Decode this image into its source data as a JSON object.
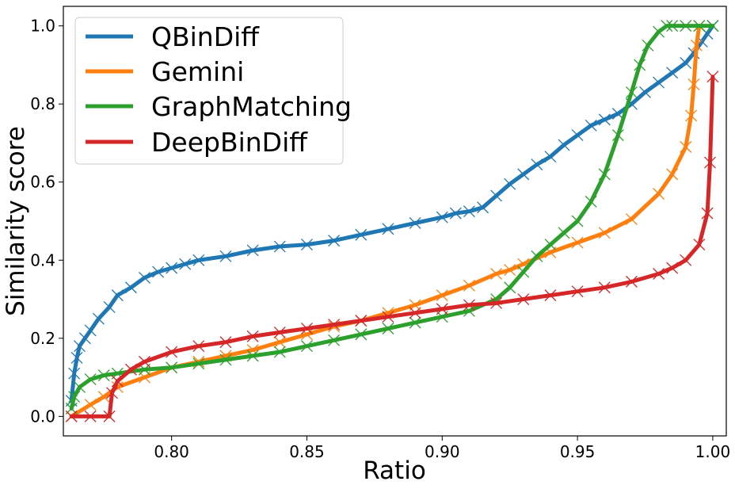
{
  "chart_data": {
    "type": "line",
    "title": "",
    "xlabel": "Ratio",
    "ylabel": "Similarity score",
    "xlim": [
      0.76,
      1.005
    ],
    "ylim": [
      -0.05,
      1.05
    ],
    "xticks": [
      0.8,
      0.85,
      0.9,
      0.95,
      1.0
    ],
    "xtick_labels": [
      "0.80",
      "0.85",
      "0.90",
      "0.95",
      "1.00"
    ],
    "yticks": [
      0.0,
      0.2,
      0.4,
      0.6,
      0.8,
      1.0
    ],
    "ytick_labels": [
      "0.0",
      "0.2",
      "0.4",
      "0.6",
      "0.8",
      "1.0"
    ],
    "grid": false,
    "legend_position": "top-left",
    "marker": "x",
    "series": [
      {
        "name": "QBinDiff",
        "color": "#1f77b4",
        "x": [
          0.763,
          0.764,
          0.765,
          0.766,
          0.768,
          0.77,
          0.773,
          0.777,
          0.78,
          0.785,
          0.79,
          0.795,
          0.8,
          0.805,
          0.81,
          0.82,
          0.83,
          0.84,
          0.85,
          0.86,
          0.87,
          0.88,
          0.89,
          0.9,
          0.905,
          0.91,
          0.915,
          0.92,
          0.925,
          0.93,
          0.935,
          0.94,
          0.945,
          0.95,
          0.955,
          0.96,
          0.965,
          0.97,
          0.975,
          0.98,
          0.985,
          0.99,
          0.993,
          0.996,
          0.998,
          1.0
        ],
        "y": [
          0.04,
          0.11,
          0.15,
          0.18,
          0.2,
          0.22,
          0.25,
          0.28,
          0.31,
          0.33,
          0.355,
          0.37,
          0.38,
          0.39,
          0.4,
          0.41,
          0.425,
          0.435,
          0.44,
          0.45,
          0.465,
          0.48,
          0.495,
          0.51,
          0.52,
          0.525,
          0.535,
          0.565,
          0.595,
          0.62,
          0.645,
          0.665,
          0.695,
          0.72,
          0.745,
          0.76,
          0.775,
          0.8,
          0.83,
          0.855,
          0.88,
          0.905,
          0.93,
          0.96,
          0.98,
          1.0
        ]
      },
      {
        "name": "Gemini",
        "color": "#ff7f0e",
        "x": [
          0.763,
          0.77,
          0.775,
          0.78,
          0.79,
          0.8,
          0.81,
          0.82,
          0.83,
          0.84,
          0.85,
          0.86,
          0.87,
          0.88,
          0.89,
          0.9,
          0.91,
          0.92,
          0.925,
          0.93,
          0.94,
          0.95,
          0.96,
          0.97,
          0.98,
          0.985,
          0.99,
          0.992,
          0.993,
          0.994,
          0.995
        ],
        "y": [
          0.0,
          0.03,
          0.05,
          0.075,
          0.1,
          0.125,
          0.14,
          0.155,
          0.17,
          0.19,
          0.21,
          0.23,
          0.245,
          0.265,
          0.285,
          0.31,
          0.335,
          0.365,
          0.375,
          0.39,
          0.42,
          0.445,
          0.47,
          0.505,
          0.57,
          0.62,
          0.69,
          0.77,
          0.85,
          0.95,
          1.0
        ]
      },
      {
        "name": "GraphMatching",
        "color": "#2ca02c",
        "x": [
          0.763,
          0.764,
          0.766,
          0.77,
          0.775,
          0.78,
          0.79,
          0.8,
          0.81,
          0.82,
          0.83,
          0.84,
          0.85,
          0.86,
          0.87,
          0.88,
          0.89,
          0.9,
          0.91,
          0.92,
          0.925,
          0.93,
          0.935,
          0.94,
          0.945,
          0.95,
          0.955,
          0.96,
          0.965,
          0.97,
          0.973,
          0.976,
          0.98,
          0.983,
          0.985,
          0.99,
          0.995,
          1.0
        ],
        "y": [
          0.02,
          0.05,
          0.075,
          0.095,
          0.105,
          0.11,
          0.12,
          0.125,
          0.135,
          0.145,
          0.155,
          0.165,
          0.18,
          0.195,
          0.21,
          0.225,
          0.24,
          0.255,
          0.27,
          0.3,
          0.33,
          0.37,
          0.41,
          0.44,
          0.47,
          0.5,
          0.55,
          0.62,
          0.72,
          0.83,
          0.9,
          0.95,
          0.985,
          1.0,
          1.0,
          1.0,
          1.0,
          1.0
        ]
      },
      {
        "name": "DeepBinDiff",
        "color": "#d62728",
        "x": [
          0.763,
          0.77,
          0.777,
          0.778,
          0.78,
          0.785,
          0.79,
          0.8,
          0.81,
          0.82,
          0.83,
          0.84,
          0.85,
          0.86,
          0.87,
          0.88,
          0.89,
          0.9,
          0.91,
          0.92,
          0.93,
          0.94,
          0.95,
          0.96,
          0.97,
          0.98,
          0.985,
          0.99,
          0.995,
          0.998,
          0.999,
          1.0
        ],
        "y": [
          0.0,
          0.0,
          0.0,
          0.06,
          0.09,
          0.12,
          0.14,
          0.165,
          0.18,
          0.19,
          0.205,
          0.215,
          0.225,
          0.235,
          0.245,
          0.255,
          0.265,
          0.275,
          0.285,
          0.29,
          0.3,
          0.31,
          0.32,
          0.33,
          0.345,
          0.365,
          0.38,
          0.4,
          0.44,
          0.52,
          0.65,
          0.87
        ]
      }
    ]
  }
}
